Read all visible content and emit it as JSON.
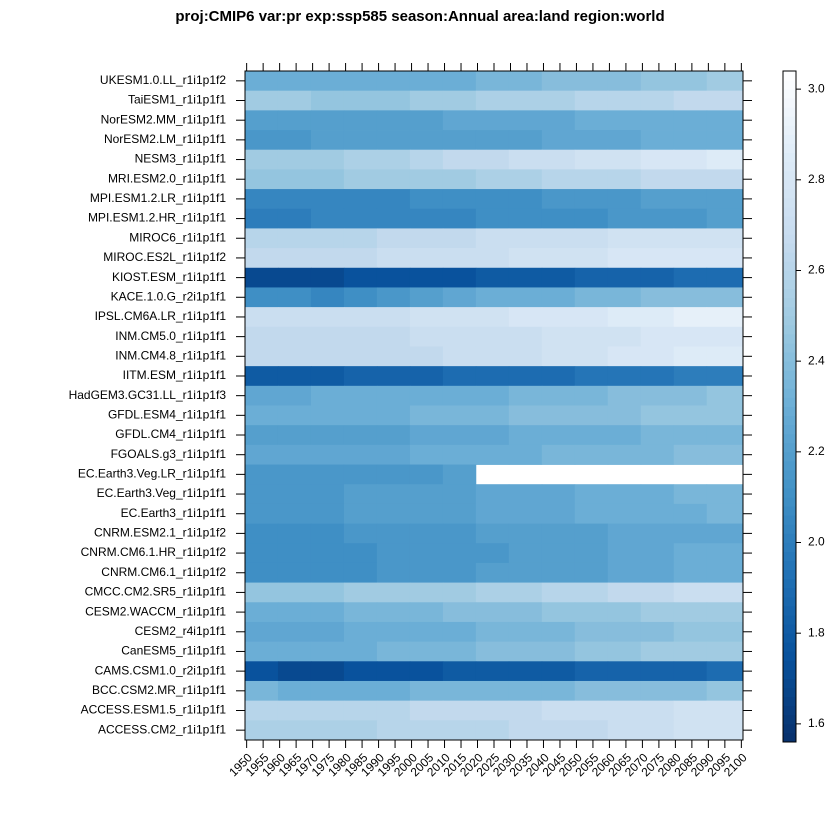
{
  "chart_data": {
    "type": "heatmap",
    "title": "proj:CMIP6 var:pr exp:ssp585 season:Annual area:land region:world",
    "x": [
      1950,
      1960,
      1970,
      1980,
      1990,
      2000,
      2010,
      2020,
      2030,
      2040,
      2050,
      2060,
      2070,
      2080,
      2090
    ],
    "xlim": [
      1949.5,
      2100.5
    ],
    "xticks": [
      1950,
      1955,
      1960,
      1965,
      1970,
      1975,
      1980,
      1985,
      1990,
      1995,
      2000,
      2005,
      2010,
      2015,
      2020,
      2025,
      2030,
      2035,
      2040,
      2045,
      2050,
      2055,
      2060,
      2065,
      2070,
      2075,
      2080,
      2085,
      2090,
      2095,
      2100
    ],
    "zlim": [
      1.56,
      3.04
    ],
    "zticks": [
      1.6,
      1.8,
      {
        "value": 2,
        "label": "2.0"
      },
      2.2,
      2.4,
      2.6,
      2.8,
      {
        "value": 3,
        "label": "3.0"
      }
    ],
    "colormap": [
      "#08306b",
      "#08519c",
      "#2171b5",
      "#4292c6",
      "#6baed6",
      "#9ecae1",
      "#c6dbef",
      "#deebf7",
      "#ffffff"
    ],
    "missing_color": "#ffffff",
    "series": [
      {
        "name": "UKESM1.0.LL_r1i1p1f2",
        "values": [
          2.3,
          2.3,
          2.3,
          2.3,
          2.3,
          2.3,
          2.3,
          2.35,
          2.35,
          2.4,
          2.4,
          2.4,
          2.45,
          2.45,
          2.5
        ]
      },
      {
        "name": "TaiESM1_r1i1p1f1",
        "values": [
          2.5,
          2.5,
          2.45,
          2.45,
          2.45,
          2.5,
          2.5,
          2.55,
          2.55,
          2.55,
          2.6,
          2.6,
          2.6,
          2.65,
          2.65
        ]
      },
      {
        "name": "NorESM2.MM_r1i1p1f1",
        "values": [
          2.2,
          2.2,
          2.2,
          2.2,
          2.2,
          2.2,
          2.25,
          2.25,
          2.25,
          2.25,
          2.3,
          2.3,
          2.3,
          2.3,
          2.3
        ]
      },
      {
        "name": "NorESM2.LM_r1i1p1f1",
        "values": [
          2.15,
          2.15,
          2.2,
          2.2,
          2.2,
          2.2,
          2.2,
          2.2,
          2.2,
          2.25,
          2.25,
          2.25,
          2.3,
          2.3,
          2.3
        ]
      },
      {
        "name": "NESM3_r1i1p1f1",
        "values": [
          2.5,
          2.5,
          2.5,
          2.55,
          2.55,
          2.6,
          2.65,
          2.65,
          2.7,
          2.7,
          2.75,
          2.75,
          2.8,
          2.8,
          2.85
        ]
      },
      {
        "name": "MRI.ESM2.0_r1i1p1f1",
        "values": [
          2.45,
          2.45,
          2.45,
          2.5,
          2.5,
          2.5,
          2.5,
          2.55,
          2.55,
          2.6,
          2.6,
          2.6,
          2.65,
          2.65,
          2.65
        ]
      },
      {
        "name": "MPI.ESM1.2.LR_r1i1p1f1",
        "values": [
          2.05,
          2.05,
          2.05,
          2.05,
          2.05,
          2.1,
          2.1,
          2.1,
          2.1,
          2.15,
          2.15,
          2.15,
          2.2,
          2.2,
          2.2
        ]
      },
      {
        "name": "MPI.ESM1.2.HR_r1i1p1f1",
        "values": [
          2.0,
          2.0,
          2.05,
          2.05,
          2.05,
          2.05,
          2.05,
          2.1,
          2.1,
          2.1,
          2.1,
          2.15,
          2.15,
          2.15,
          2.2
        ]
      },
      {
        "name": "MIROC6_r1i1p1f1",
        "values": [
          2.6,
          2.6,
          2.6,
          2.6,
          2.65,
          2.65,
          2.65,
          2.7,
          2.7,
          2.7,
          2.7,
          2.75,
          2.75,
          2.75,
          2.75
        ]
      },
      {
        "name": "MIROC.ES2L_r1i1p1f2",
        "values": [
          2.65,
          2.65,
          2.65,
          2.65,
          2.7,
          2.7,
          2.7,
          2.7,
          2.75,
          2.75,
          2.75,
          2.8,
          2.8,
          2.8,
          2.8
        ]
      },
      {
        "name": "KIOST.ESM_r1i1p1f1",
        "values": [
          1.7,
          1.7,
          1.7,
          1.75,
          1.75,
          1.75,
          1.75,
          1.8,
          1.8,
          1.8,
          1.85,
          1.85,
          1.85,
          1.9,
          1.9
        ]
      },
      {
        "name": "KACE.1.0.G_r2i1p1f1",
        "values": [
          2.1,
          2.1,
          2.05,
          2.1,
          2.15,
          2.2,
          2.25,
          2.3,
          2.3,
          2.3,
          2.35,
          2.35,
          2.4,
          2.4,
          2.4
        ]
      },
      {
        "name": "IPSL.CM6A.LR_r1i1p1f1",
        "values": [
          2.7,
          2.7,
          2.7,
          2.7,
          2.7,
          2.75,
          2.75,
          2.75,
          2.8,
          2.8,
          2.8,
          2.85,
          2.85,
          2.9,
          2.9
        ]
      },
      {
        "name": "INM.CM5.0_r1i1p1f1",
        "values": [
          2.65,
          2.65,
          2.65,
          2.65,
          2.65,
          2.7,
          2.7,
          2.7,
          2.7,
          2.75,
          2.75,
          2.75,
          2.8,
          2.8,
          2.8
        ]
      },
      {
        "name": "INM.CM4.8_r1i1p1f1",
        "values": [
          2.65,
          2.65,
          2.65,
          2.65,
          2.65,
          2.65,
          2.7,
          2.7,
          2.7,
          2.75,
          2.75,
          2.8,
          2.8,
          2.85,
          2.85
        ]
      },
      {
        "name": "IITM.ESM_r1i1p1f1",
        "values": [
          1.8,
          1.8,
          1.8,
          1.85,
          1.85,
          1.85,
          1.9,
          1.9,
          1.9,
          1.9,
          1.95,
          1.95,
          1.95,
          2.0,
          2.0
        ]
      },
      {
        "name": "HadGEM3.GC31.LL_r1i1p1f3",
        "values": [
          2.25,
          2.25,
          2.3,
          2.3,
          2.3,
          2.3,
          2.3,
          2.3,
          2.35,
          2.35,
          2.35,
          2.4,
          2.4,
          2.4,
          2.45
        ]
      },
      {
        "name": "GFDL.ESM4_r1i1p1f1",
        "values": [
          2.3,
          2.3,
          2.3,
          2.3,
          2.3,
          2.35,
          2.35,
          2.35,
          2.4,
          2.4,
          2.4,
          2.4,
          2.45,
          2.45,
          2.45
        ]
      },
      {
        "name": "GFDL.CM4_r1i1p1f1",
        "values": [
          2.2,
          2.2,
          2.2,
          2.2,
          2.2,
          2.25,
          2.25,
          2.25,
          2.3,
          2.3,
          2.3,
          2.3,
          2.35,
          2.35,
          2.35
        ]
      },
      {
        "name": "FGOALS.g3_r1i1p1f1",
        "values": [
          2.25,
          2.25,
          2.25,
          2.25,
          2.25,
          2.3,
          2.3,
          2.3,
          2.3,
          2.35,
          2.35,
          2.35,
          2.35,
          2.4,
          2.4
        ]
      },
      {
        "name": "EC.Earth3.Veg.LR_r1i1p1f1",
        "values": [
          2.15,
          2.15,
          2.15,
          2.15,
          2.15,
          2.15,
          2.2,
          null,
          null,
          null,
          null,
          null,
          null,
          null,
          null
        ]
      },
      {
        "name": "EC.Earth3.Veg_r1i1p1f1",
        "values": [
          2.15,
          2.15,
          2.15,
          2.2,
          2.2,
          2.2,
          2.2,
          2.25,
          2.25,
          2.25,
          2.3,
          2.3,
          2.3,
          2.35,
          2.35
        ]
      },
      {
        "name": "EC.Earth3_r1i1p1f1",
        "values": [
          2.15,
          2.15,
          2.15,
          2.2,
          2.2,
          2.2,
          2.2,
          2.25,
          2.25,
          2.25,
          2.3,
          2.3,
          2.3,
          2.3,
          2.35
        ]
      },
      {
        "name": "CNRM.ESM2.1_r1i1p1f2",
        "values": [
          2.1,
          2.1,
          2.1,
          2.15,
          2.15,
          2.15,
          2.15,
          2.2,
          2.2,
          2.2,
          2.2,
          2.25,
          2.25,
          2.25,
          2.25
        ]
      },
      {
        "name": "CNRM.CM6.1.HR_r1i1p1f2",
        "values": [
          2.1,
          2.1,
          2.1,
          2.1,
          2.15,
          2.15,
          2.15,
          2.15,
          2.2,
          2.2,
          2.2,
          2.25,
          2.25,
          2.3,
          2.3
        ]
      },
      {
        "name": "CNRM.CM6.1_r1i1p1f2",
        "values": [
          2.1,
          2.1,
          2.1,
          2.1,
          2.15,
          2.15,
          2.15,
          2.2,
          2.2,
          2.2,
          2.2,
          2.25,
          2.25,
          2.3,
          2.3
        ]
      },
      {
        "name": "CMCC.CM2.SR5_r1i1p1f1",
        "values": [
          2.45,
          2.45,
          2.45,
          2.5,
          2.5,
          2.5,
          2.5,
          2.55,
          2.55,
          2.6,
          2.6,
          2.65,
          2.65,
          2.7,
          2.7
        ]
      },
      {
        "name": "CESM2.WACCM_r1i1p1f1",
        "values": [
          2.3,
          2.3,
          2.3,
          2.35,
          2.35,
          2.35,
          2.4,
          2.4,
          2.4,
          2.45,
          2.45,
          2.45,
          2.5,
          2.5,
          2.5
        ]
      },
      {
        "name": "CESM2_r4i1p1f1",
        "values": [
          2.25,
          2.25,
          2.25,
          2.3,
          2.3,
          2.3,
          2.3,
          2.35,
          2.35,
          2.35,
          2.4,
          2.4,
          2.4,
          2.45,
          2.45
        ]
      },
      {
        "name": "CanESM5_r1i1p1f1",
        "values": [
          2.3,
          2.3,
          2.3,
          2.3,
          2.35,
          2.35,
          2.35,
          2.4,
          2.4,
          2.4,
          2.45,
          2.45,
          2.5,
          2.5,
          2.5
        ]
      },
      {
        "name": "CAMS.CSM1.0_r2i1p1f1",
        "values": [
          1.75,
          1.7,
          1.7,
          1.75,
          1.75,
          1.75,
          1.8,
          1.8,
          1.8,
          1.8,
          1.85,
          1.85,
          1.85,
          1.85,
          1.9
        ]
      },
      {
        "name": "BCC.CSM2.MR_r1i1p1f1",
        "values": [
          2.35,
          2.3,
          2.3,
          2.3,
          2.3,
          2.35,
          2.35,
          2.35,
          2.35,
          2.35,
          2.4,
          2.4,
          2.4,
          2.4,
          2.45
        ]
      },
      {
        "name": "ACCESS.ESM1.5_r1i1p1f1",
        "values": [
          2.6,
          2.6,
          2.6,
          2.6,
          2.6,
          2.65,
          2.65,
          2.65,
          2.65,
          2.7,
          2.7,
          2.7,
          2.7,
          2.75,
          2.75
        ]
      },
      {
        "name": "ACCESS.CM2_r1i1p1f1",
        "values": [
          2.55,
          2.55,
          2.55,
          2.55,
          2.6,
          2.6,
          2.6,
          2.6,
          2.65,
          2.65,
          2.65,
          2.7,
          2.7,
          2.75,
          2.75
        ]
      }
    ]
  }
}
